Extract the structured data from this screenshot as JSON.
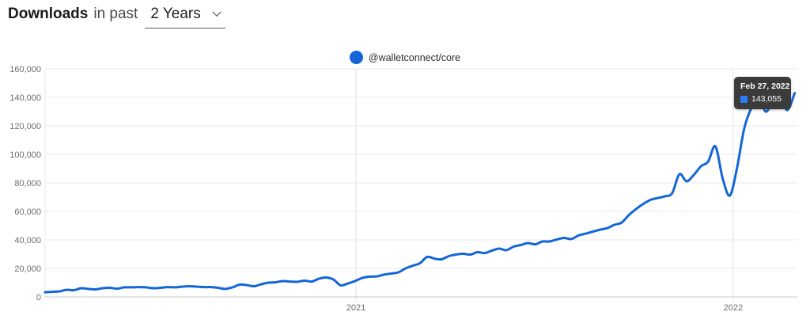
{
  "header": {
    "title_bold": "Downloads",
    "title_rest": "in past",
    "range_value": "2 Years"
  },
  "legend": {
    "series_label": "@walletconnect/core",
    "color": "#1366d6"
  },
  "tooltip": {
    "date": "Feb 27, 2022",
    "value": "143,055",
    "swatch_color": "#2b7cf7"
  },
  "colors": {
    "line_blue": "#1366d6",
    "grid_line": "#e8e8e8",
    "axis_line": "#c9c9c9",
    "tick_text": "#6d6d6d",
    "tooltip_bg": "#3b3b3b"
  },
  "chart_data": {
    "type": "line",
    "title": "Downloads in past 2 Years",
    "xlabel": "",
    "ylabel": "",
    "grid": true,
    "legend_position": "top-center",
    "ylim": [
      0,
      160000
    ],
    "x_range": [
      2020.176,
      2022.17
    ],
    "x_ticks": [
      {
        "value": 2021,
        "label": "2021"
      },
      {
        "value": 2022,
        "label": "2022"
      }
    ],
    "y_ticks": [
      {
        "value": 0,
        "label": "0"
      },
      {
        "value": 20000,
        "label": "20,000"
      },
      {
        "value": 40000,
        "label": "40,000"
      },
      {
        "value": 60000,
        "label": "60,000"
      },
      {
        "value": 80000,
        "label": "80,000"
      },
      {
        "value": 100000,
        "label": "100,000"
      },
      {
        "value": 120000,
        "label": "120,000"
      },
      {
        "value": 140000,
        "label": "140,000"
      },
      {
        "value": 160000,
        "label": "160,000"
      }
    ],
    "series": [
      {
        "name": "@walletconnect/core",
        "color": "#1366d6",
        "cadence": "weekly",
        "x_start": 2020.176,
        "x_end": 2022.163,
        "last_point": {
          "date": "Feb 27, 2022",
          "value": 143055
        },
        "values": [
          3300,
          3600,
          3900,
          5000,
          4700,
          6100,
          5600,
          5300,
          6100,
          6400,
          5800,
          6700,
          6700,
          6900,
          6700,
          6100,
          6400,
          6900,
          6700,
          7200,
          7500,
          7200,
          6900,
          6900,
          6400,
          5600,
          6700,
          8600,
          8300,
          7500,
          8900,
          10000,
          10300,
          11100,
          10800,
          10600,
          11400,
          10800,
          12800,
          13600,
          12200,
          8100,
          9400,
          11100,
          13300,
          14200,
          14400,
          15600,
          16400,
          17200,
          20000,
          21900,
          23600,
          28000,
          26900,
          26400,
          28600,
          29700,
          30300,
          29700,
          31400,
          30800,
          32500,
          33900,
          32800,
          35300,
          36400,
          37800,
          36900,
          38900,
          38900,
          40300,
          41400,
          40600,
          43100,
          44400,
          45800,
          47200,
          48300,
          50600,
          52200,
          57500,
          61700,
          65300,
          68100,
          69400,
          70600,
          72800,
          86100,
          81100,
          85600,
          91700,
          95000,
          105600,
          83300,
          71100,
          90600,
          118300,
          132800,
          140000,
          130000,
          137800,
          139400,
          131100,
          143055
        ]
      }
    ]
  }
}
